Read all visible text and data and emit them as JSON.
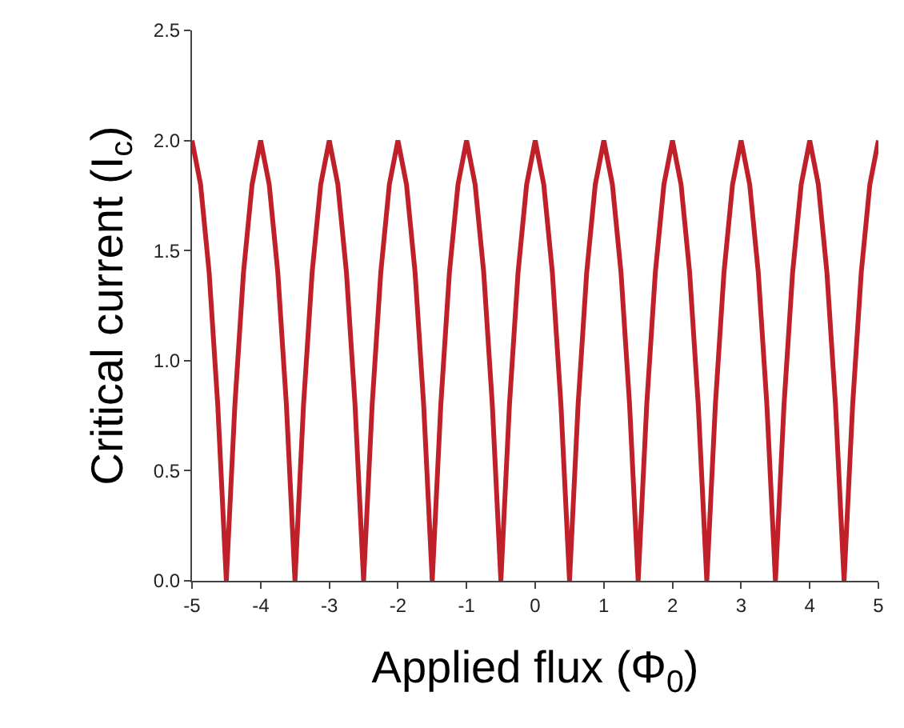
{
  "chart_data": {
    "type": "line",
    "xlabel": "Applied flux (Φ$_{0}$)",
    "ylabel": "Critical current (I$_{c}$)",
    "x": [
      -5,
      -4.875,
      -4.75,
      -4.625,
      -4.5,
      -4.375,
      -4.25,
      -4.125,
      -4,
      -3.875,
      -3.75,
      -3.625,
      -3.5,
      -3.375,
      -3.25,
      -3.125,
      -3,
      -2.875,
      -2.75,
      -2.625,
      -2.5,
      -2.375,
      -2.25,
      -2.125,
      -2,
      -1.875,
      -1.75,
      -1.625,
      -1.5,
      -1.375,
      -1.25,
      -1.125,
      -1,
      -0.875,
      -0.75,
      -0.625,
      -0.5,
      -0.375,
      -0.25,
      -0.125,
      0,
      0.125,
      0.25,
      0.375,
      0.5,
      0.625,
      0.75,
      0.875,
      1,
      1.125,
      1.25,
      1.375,
      1.5,
      1.625,
      1.75,
      1.875,
      2,
      2.125,
      2.25,
      2.375,
      2.5,
      2.625,
      2.75,
      2.875,
      3,
      3.125,
      3.25,
      3.375,
      3.5,
      3.625,
      3.75,
      3.875,
      4,
      4.125,
      4.25,
      4.375,
      4.5,
      4.625,
      4.75,
      4.875,
      5
    ],
    "series": [
      {
        "color": "#c0202a",
        "values": [
          2.0,
          1.8,
          1.4,
          0.8,
          0.0,
          0.8,
          1.4,
          1.8,
          2.0,
          1.8,
          1.4,
          0.8,
          0.0,
          0.8,
          1.4,
          1.8,
          2.0,
          1.8,
          1.4,
          0.8,
          0.0,
          0.8,
          1.4,
          1.8,
          2.0,
          1.8,
          1.4,
          0.8,
          0.0,
          0.8,
          1.4,
          1.8,
          2.0,
          1.8,
          1.4,
          0.8,
          0.0,
          0.8,
          1.4,
          1.8,
          2.0,
          1.8,
          1.4,
          0.8,
          0.0,
          0.8,
          1.4,
          1.8,
          2.0,
          1.8,
          1.4,
          0.8,
          0.0,
          0.8,
          1.4,
          1.8,
          2.0,
          1.8,
          1.4,
          0.8,
          0.0,
          0.8,
          1.4,
          1.8,
          2.0,
          1.8,
          1.4,
          0.8,
          0.0,
          0.8,
          1.4,
          1.8,
          2.0,
          1.8,
          1.4,
          0.8,
          0.0,
          0.8,
          1.4,
          1.8,
          2.0
        ]
      }
    ],
    "xlim": [
      -5,
      5
    ],
    "xticks": [
      -5,
      -4,
      -3,
      -2,
      -1,
      0,
      1,
      2,
      3,
      4,
      5
    ],
    "ylim": [
      0,
      2.5
    ],
    "yticks": [
      {
        "value": 0,
        "label": "0.0"
      },
      {
        "value": 0.5,
        "label": "0.5"
      },
      {
        "value": 1,
        "label": "1.0"
      },
      {
        "value": 1.5,
        "label": "1.5"
      },
      {
        "value": 2,
        "label": "2.0"
      },
      {
        "value": 2.5,
        "label": "2.5"
      }
    ],
    "marker": "none",
    "line_style": "solid"
  }
}
